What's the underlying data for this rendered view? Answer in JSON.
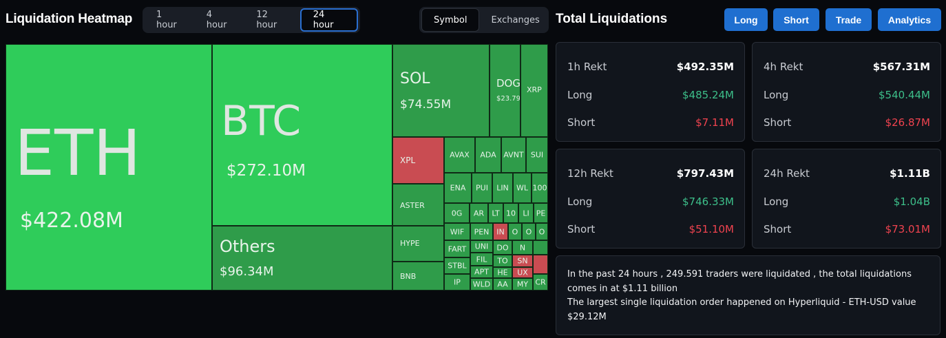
{
  "heatmap": {
    "title": "Liquidation Heatmap",
    "time_tabs": [
      "1 hour",
      "4 hour",
      "12 hour",
      "24 hour"
    ],
    "active_time_tab": "24 hour",
    "view_tabs": [
      "Symbol",
      "Exchanges"
    ],
    "active_view_tab": "Symbol",
    "tiles": {
      "eth": {
        "symbol": "ETH",
        "value": "$422.08M"
      },
      "btc": {
        "symbol": "BTC",
        "value": "$272.10M"
      },
      "others": {
        "symbol": "Others",
        "value": "$96.34M"
      },
      "sol": {
        "symbol": "SOL",
        "value": "$74.55M"
      },
      "doge": {
        "symbol": "DOG",
        "value": "$23.79"
      },
      "xrp": {
        "symbol": "XRP"
      },
      "xpl": {
        "symbol": "XPL"
      },
      "aster": {
        "symbol": "ASTER"
      },
      "hype": {
        "symbol": "HYPE"
      },
      "bnb": {
        "symbol": "BNB"
      },
      "avax": {
        "symbol": "AVAX"
      },
      "ada": {
        "symbol": "ADA"
      },
      "avnt": {
        "symbol": "AVNT"
      },
      "sui": {
        "symbol": "SUI"
      },
      "ena": {
        "symbol": "ENA"
      },
      "pump": {
        "symbol": "PUI"
      },
      "link": {
        "symbol": "LIN"
      },
      "wlfi": {
        "symbol": "WL"
      },
      "t1000": {
        "symbol": "100"
      },
      "zerog": {
        "symbol": "0G"
      },
      "arb": {
        "symbol": "AR"
      },
      "ltc": {
        "symbol": "LT"
      },
      "t10": {
        "symbol": "10"
      },
      "lin2": {
        "symbol": "LI"
      },
      "pe": {
        "symbol": "PE"
      },
      "wif": {
        "symbol": "WIF"
      },
      "pengu": {
        "symbol": "PEN"
      },
      "in": {
        "symbol": "IN"
      },
      "o1": {
        "symbol": "O"
      },
      "o2": {
        "symbol": "O"
      },
      "o3": {
        "symbol": "O"
      },
      "fart": {
        "symbol": "FART"
      },
      "uni": {
        "symbol": "UNI"
      },
      "dot": {
        "symbol": "DO"
      },
      "n1": {
        "symbol": "N"
      },
      "stbl": {
        "symbol": "STBL"
      },
      "fil": {
        "symbol": "FIL"
      },
      "ton": {
        "symbol": "TO"
      },
      "snx": {
        "symbol": "SN"
      },
      "apt": {
        "symbol": "APT"
      },
      "hbar": {
        "symbol": "HE"
      },
      "ux": {
        "symbol": "UX"
      },
      "ip": {
        "symbol": "IP"
      },
      "wld": {
        "symbol": "WLD"
      },
      "aa": {
        "symbol": "AA"
      },
      "my": {
        "symbol": "MY"
      },
      "cr": {
        "symbol": "CR"
      }
    }
  },
  "totals": {
    "title": "Total Liquidations",
    "nav": [
      "Long",
      "Short",
      "Trade",
      "Analytics"
    ],
    "cards": [
      {
        "label": "1h Rekt",
        "total": "$492.35M",
        "long_label": "Long",
        "long": "$485.24M",
        "short_label": "Short",
        "short": "$7.11M"
      },
      {
        "label": "4h Rekt",
        "total": "$567.31M",
        "long_label": "Long",
        "long": "$540.44M",
        "short_label": "Short",
        "short": "$26.87M"
      },
      {
        "label": "12h Rekt",
        "total": "$797.43M",
        "long_label": "Long",
        "long": "$746.33M",
        "short_label": "Short",
        "short": "$51.10M"
      },
      {
        "label": "24h Rekt",
        "total": "$1.11B",
        "long_label": "Long",
        "long": "$1.04B",
        "short_label": "Short",
        "short": "$73.01M"
      }
    ],
    "summary": {
      "line1": "In the past 24 hours , 249.591 traders were liquidated , the total liquidations comes in at $1.11 billion",
      "line2": "The largest single liquidation order happened on Hyperliquid - ETH-USD value $29.12M"
    }
  },
  "colors": {
    "background": "#07090d",
    "tile_large": "#2fcc5a",
    "tile_long": "#2f9c4a",
    "tile_short": "#c94c52",
    "button": "#1f6fd0",
    "long_text": "#3dbf8a",
    "short_text": "#f0434f"
  }
}
